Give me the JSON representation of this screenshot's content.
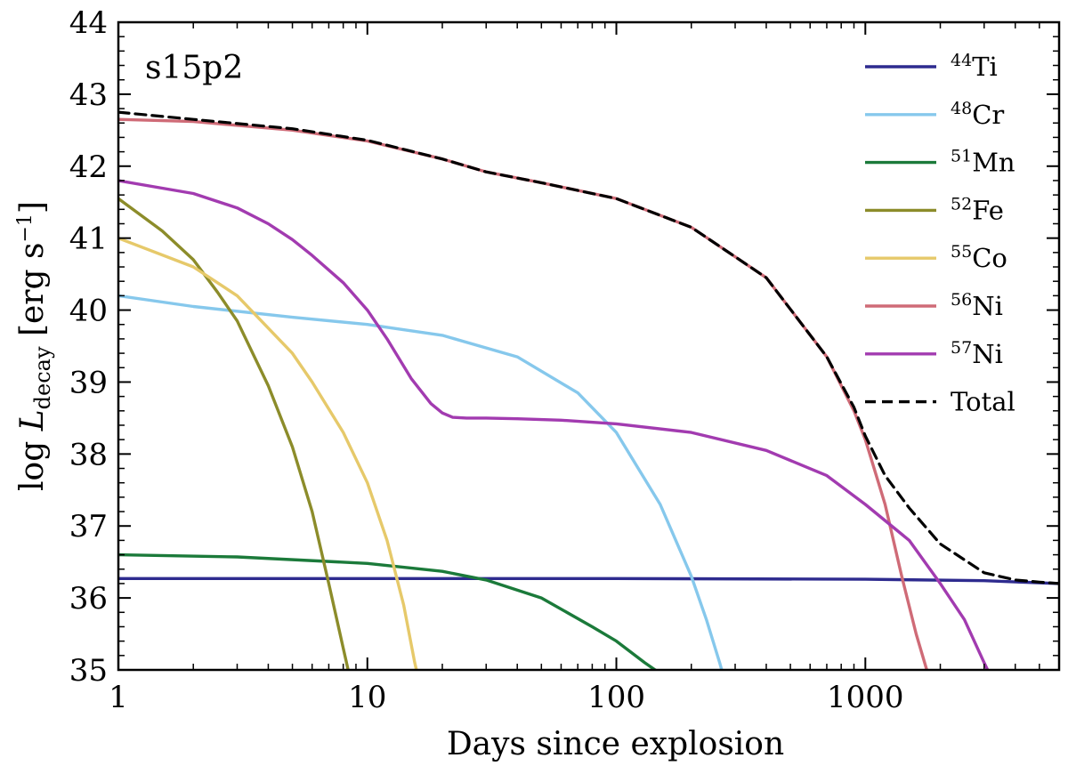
{
  "chart_data": {
    "type": "line",
    "panel_label": "s15p2",
    "xlabel": "Days since explosion",
    "ylabel_prefix": "log ",
    "ylabel_symbol": "L",
    "ylabel_subscript": "decay",
    "ylabel_unit_open": " [erg s",
    "ylabel_unit_exp": "−1",
    "ylabel_unit_close": "]",
    "xscale": "log",
    "xlim": [
      1,
      6000
    ],
    "ylim": [
      35,
      44
    ],
    "x_ticks": [
      1,
      10,
      100,
      1000
    ],
    "x_tick_labels": [
      "1",
      "10",
      "100",
      "1000"
    ],
    "y_ticks": [
      35,
      36,
      37,
      38,
      39,
      40,
      41,
      42,
      43,
      44
    ],
    "y_tick_labels": [
      "35",
      "36",
      "37",
      "38",
      "39",
      "40",
      "41",
      "42",
      "43",
      "44"
    ],
    "grid": false,
    "legend_position": "right",
    "series": [
      {
        "sup": "44",
        "elem": "Ti",
        "color": "#2e2b8f",
        "dash": false,
        "x": [
          1,
          10,
          100,
          1000,
          3000,
          6000
        ],
        "y": [
          36.27,
          36.27,
          36.27,
          36.26,
          36.24,
          36.2
        ]
      },
      {
        "sup": "48",
        "elem": "Cr",
        "color": "#86c8ec",
        "dash": false,
        "x": [
          1,
          2,
          5,
          10,
          20,
          40,
          70,
          100,
          150,
          200,
          230,
          260,
          270
        ],
        "y": [
          40.2,
          40.05,
          39.9,
          39.8,
          39.65,
          39.35,
          38.85,
          38.3,
          37.3,
          36.3,
          35.7,
          35.1,
          34.9
        ]
      },
      {
        "sup": "51",
        "elem": "Mn",
        "color": "#1b7a3a",
        "dash": false,
        "x": [
          1,
          3,
          10,
          20,
          30,
          50,
          80,
          100,
          130,
          150,
          160
        ],
        "y": [
          36.6,
          36.57,
          36.48,
          36.37,
          36.25,
          36.0,
          35.6,
          35.4,
          35.1,
          34.95,
          34.85
        ]
      },
      {
        "sup": "52",
        "elem": "Fe",
        "color": "#8c8c2a",
        "dash": false,
        "x": [
          1,
          1.5,
          2,
          2.5,
          3,
          4,
          5,
          6,
          7,
          8,
          8.5,
          9
        ],
        "y": [
          41.55,
          41.1,
          40.7,
          40.25,
          39.85,
          38.95,
          38.1,
          37.2,
          36.2,
          35.3,
          34.9,
          34.6
        ]
      },
      {
        "sup": "55",
        "elem": "Co",
        "color": "#e6c96a",
        "dash": false,
        "x": [
          1,
          2,
          3,
          4,
          5,
          6,
          8,
          10,
          12,
          14,
          15.5,
          16.5
        ],
        "y": [
          41.0,
          40.6,
          40.2,
          39.75,
          39.4,
          39.0,
          38.3,
          37.6,
          36.8,
          35.9,
          35.1,
          34.7
        ]
      },
      {
        "sup": "56",
        "elem": "Ni",
        "color": "#cf6b77",
        "dash": false,
        "x": [
          1,
          2,
          5,
          10,
          20,
          30,
          50,
          100,
          200,
          400,
          700,
          900,
          1000,
          1200,
          1400,
          1600,
          1800,
          2000
        ],
        "y": [
          42.65,
          42.62,
          42.5,
          42.35,
          42.1,
          41.92,
          41.77,
          41.55,
          41.15,
          40.45,
          39.35,
          38.6,
          38.2,
          37.3,
          36.3,
          35.5,
          34.9,
          34.5
        ]
      },
      {
        "sup": "57",
        "elem": "Ni",
        "color": "#a23bb0",
        "dash": false,
        "x": [
          1,
          2,
          3,
          4,
          5,
          6,
          8,
          10,
          12,
          15,
          18,
          20,
          22,
          25,
          30,
          40,
          60,
          100,
          200,
          400,
          700,
          1000,
          1500,
          2000,
          2500,
          3000,
          3300,
          3500
        ],
        "y": [
          41.8,
          41.62,
          41.42,
          41.2,
          40.98,
          40.76,
          40.38,
          40.0,
          39.6,
          39.05,
          38.7,
          38.57,
          38.51,
          38.5,
          38.5,
          38.49,
          38.47,
          38.42,
          38.3,
          38.05,
          37.7,
          37.3,
          36.8,
          36.2,
          35.7,
          35.1,
          34.8,
          34.6
        ]
      },
      {
        "sup": "",
        "elem": "Total",
        "color": "#000000",
        "dash": true,
        "x": [
          1,
          2,
          5,
          10,
          20,
          30,
          50,
          100,
          200,
          400,
          700,
          900,
          1000,
          1200,
          1500,
          2000,
          3000,
          4000,
          5000,
          6000
        ],
        "y": [
          42.75,
          42.65,
          42.52,
          42.36,
          42.1,
          41.92,
          41.77,
          41.55,
          41.15,
          40.45,
          39.35,
          38.65,
          38.25,
          37.7,
          37.25,
          36.75,
          36.35,
          36.25,
          36.22,
          36.2
        ]
      }
    ]
  }
}
